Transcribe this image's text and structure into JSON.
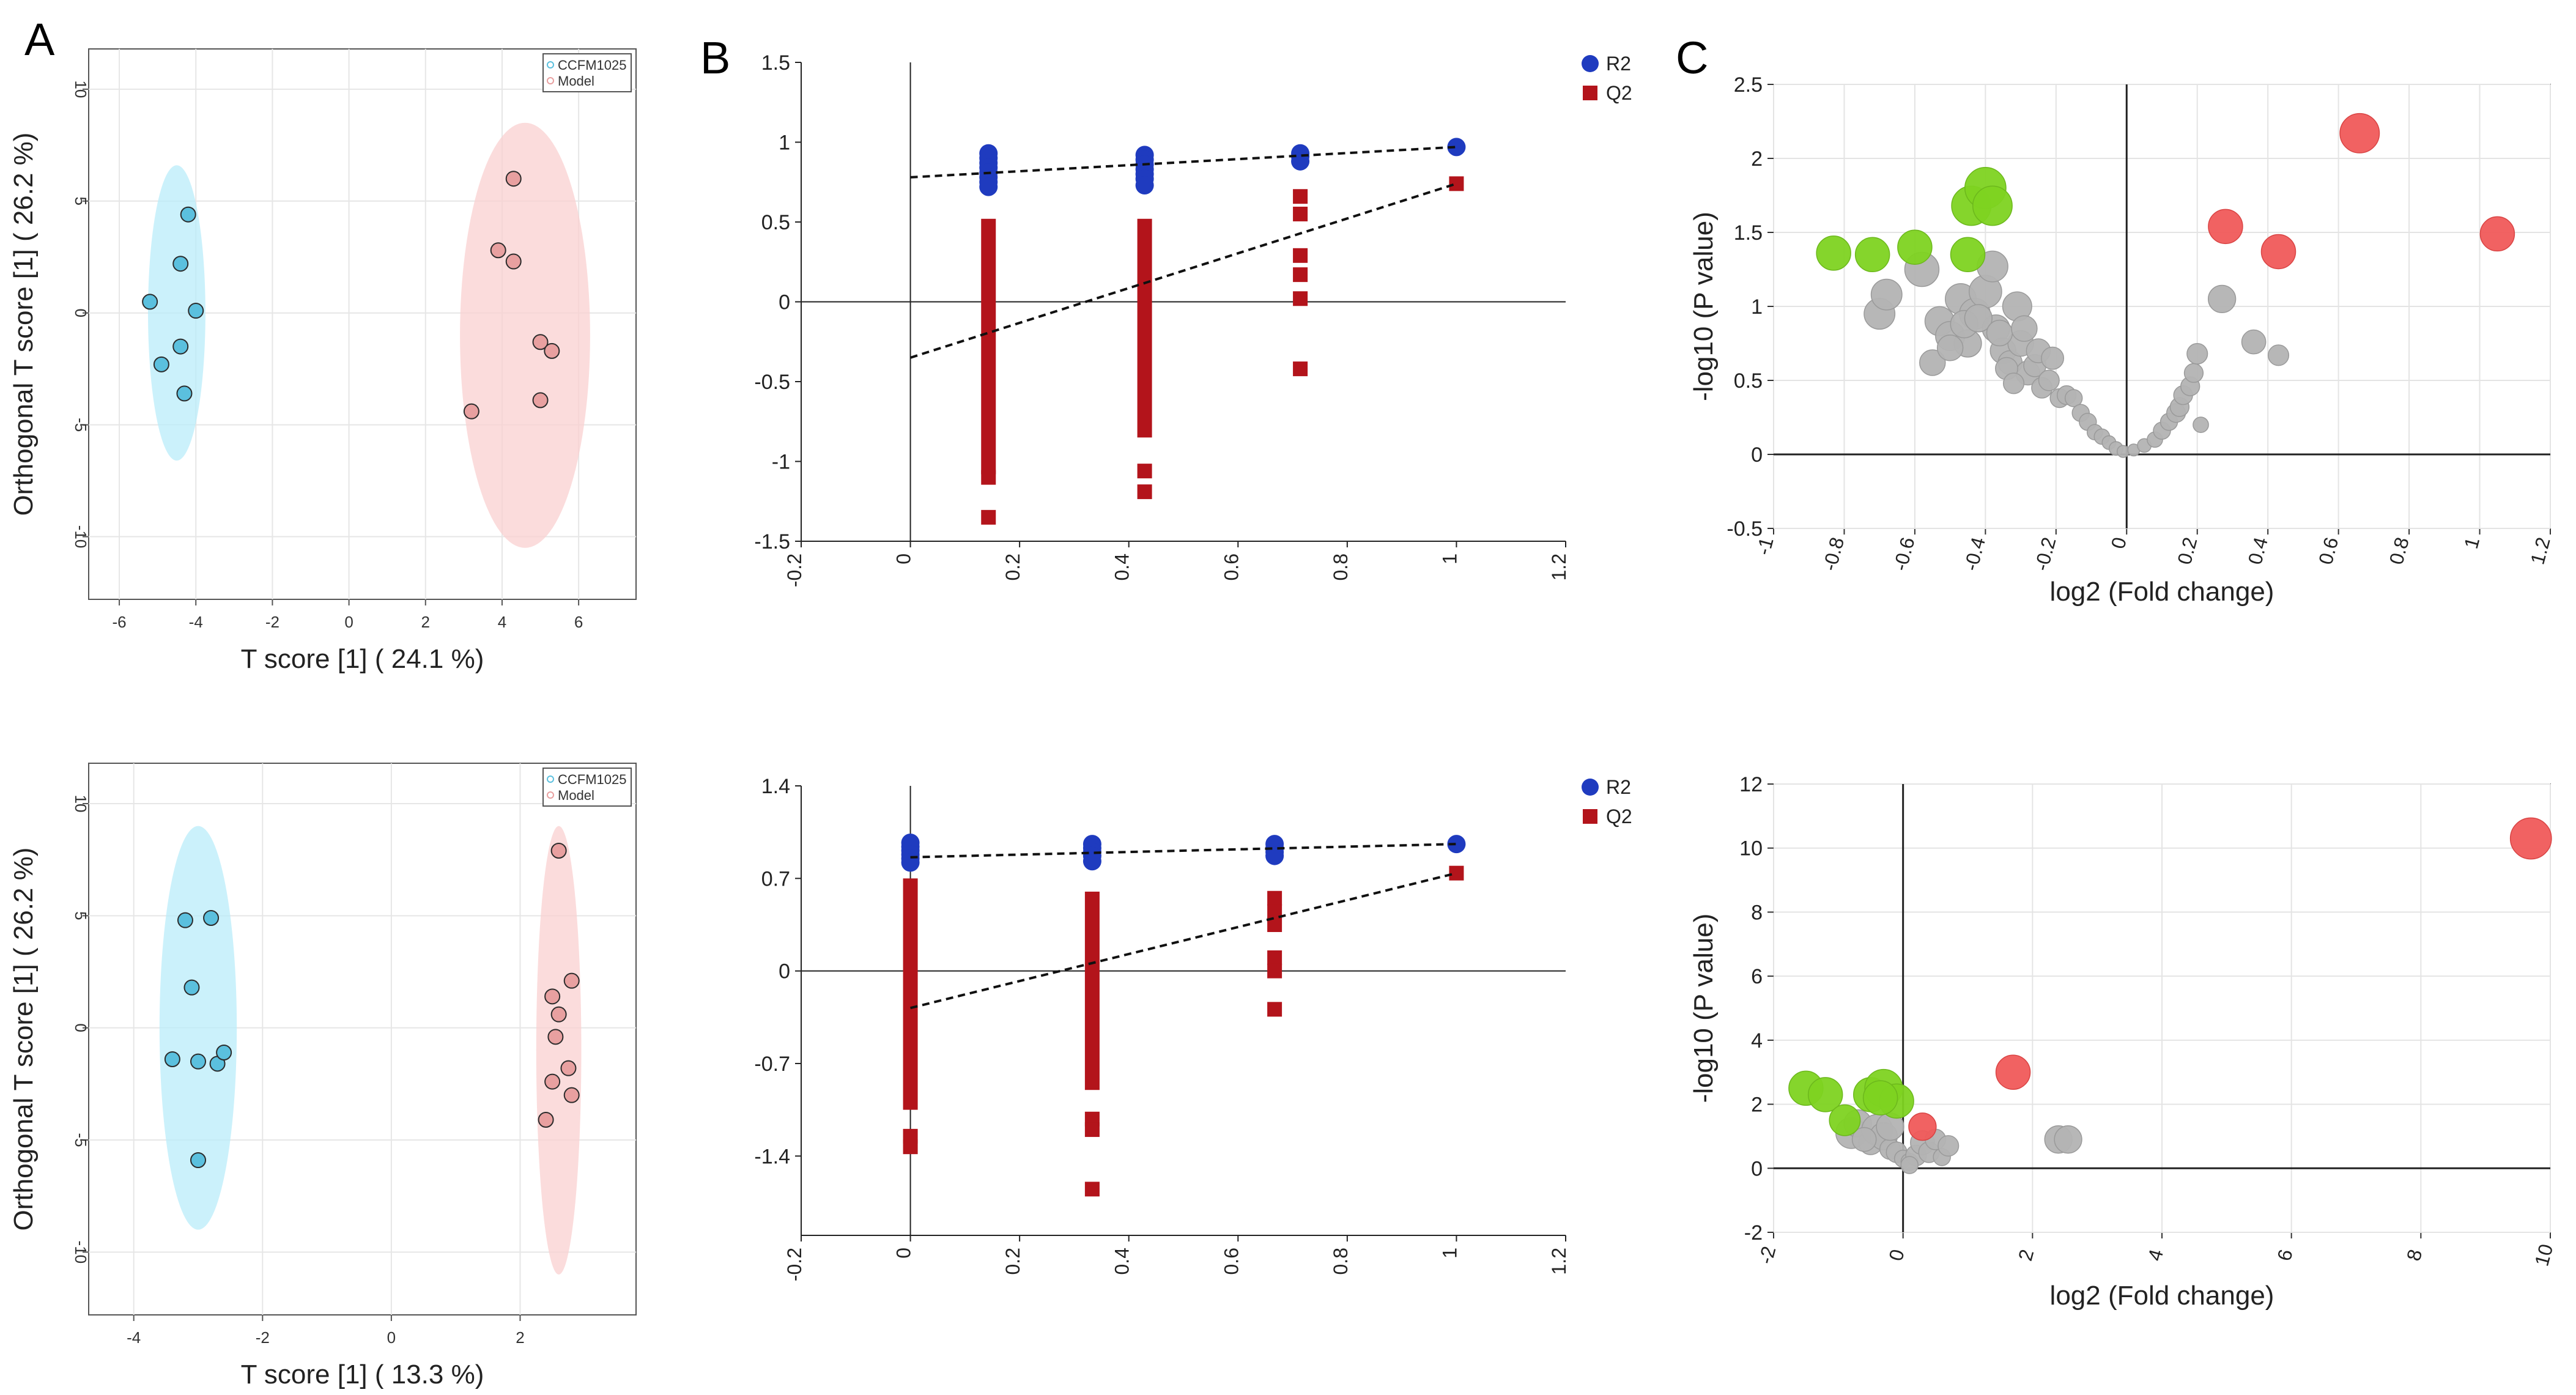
{
  "panel_labels": [
    "A",
    "B",
    "C"
  ],
  "chart_data": [
    {
      "id": "A1",
      "type": "scatter",
      "xlabel": "T score [1] ( 24.1 %)",
      "ylabel": "Orthogonal T score [1] ( 26.2 %)",
      "xlim": [
        -6.8,
        7.5
      ],
      "ylim": [
        -12.8,
        11.8
      ],
      "xticks": [
        -6,
        -4,
        -2,
        0,
        2,
        4,
        6
      ],
      "yticks": [
        -10,
        -5,
        0,
        5,
        10
      ],
      "grid": true,
      "legend": "top-right",
      "legend_entries": [
        "CCFM1025",
        "Model"
      ],
      "series": [
        {
          "name": "CCFM1025",
          "color": "#5bc0de",
          "ellipse": {
            "cx": -4.5,
            "cy": 0.0,
            "rx": 0.75,
            "ry": 6.6,
            "color": "#b9ecfa"
          },
          "x": [
            -5.2,
            -4.2,
            -4.4,
            -4.0,
            -4.4,
            -4.3,
            -4.9
          ],
          "y": [
            0.5,
            4.4,
            2.2,
            0.1,
            -1.5,
            -3.6,
            -2.3
          ]
        },
        {
          "name": "Model",
          "color": "#e8a0a0",
          "ellipse": {
            "cx": 4.6,
            "cy": -1.0,
            "rx": 1.7,
            "ry": 9.5,
            "color": "#f9d0d0"
          },
          "x": [
            4.3,
            3.9,
            4.3,
            5.0,
            5.3,
            3.2,
            5.0
          ],
          "y": [
            6.0,
            2.8,
            2.3,
            -1.3,
            -1.7,
            -4.4,
            -3.9
          ]
        }
      ]
    },
    {
      "id": "B1",
      "type": "scatter",
      "xlim": [
        -0.2,
        1.2
      ],
      "ylim": [
        -1.5,
        1.5
      ],
      "xticks": [
        -0.2,
        0,
        0.2,
        0.4,
        0.6,
        0.8,
        1,
        1.2
      ],
      "yticks": [
        -1.5,
        -1,
        -0.5,
        0,
        0.5,
        1,
        1.5
      ],
      "legend": "top-right",
      "series": [
        {
          "name": "R2",
          "color": "#1f3bbf",
          "marker": "circle",
          "x": [
            0.143,
            0.143,
            0.143,
            0.143,
            0.143,
            0.143,
            0.143,
            0.143,
            0.429,
            0.429,
            0.429,
            0.429,
            0.429,
            0.429,
            0.429,
            0.714,
            0.714,
            0.714,
            1
          ],
          "y": [
            0.93,
            0.9,
            0.87,
            0.84,
            0.81,
            0.78,
            0.75,
            0.72,
            0.92,
            0.89,
            0.86,
            0.83,
            0.8,
            0.77,
            0.73,
            0.93,
            0.91,
            0.88,
            0.97
          ]
        },
        {
          "name": "Q2",
          "color": "#b3141b",
          "marker": "square",
          "bands": [
            [
              0.143,
              -1.08,
              0.52
            ],
            [
              0.429,
              -0.85,
              0.52
            ]
          ],
          "x": [
            0.143,
            0.143,
            0.429,
            0.429,
            0.714,
            0.714,
            0.714,
            0.714,
            0.714,
            0.714,
            1
          ],
          "y": [
            -1.35,
            -1.1,
            -1.06,
            -1.19,
            0.66,
            0.55,
            0.29,
            0.17,
            0.02,
            -0.42,
            0.74
          ]
        }
      ],
      "regression": [
        {
          "x": [
            0,
            1
          ],
          "y": [
            0.78,
            0.97
          ]
        },
        {
          "x": [
            0,
            1
          ],
          "y": [
            -0.35,
            0.74
          ]
        }
      ]
    },
    {
      "id": "C1",
      "type": "scatter",
      "xlabel": "log2 (Fold change)",
      "ylabel": "-log10 (P value)",
      "xlim": [
        -1,
        1.2
      ],
      "ylim": [
        -0.5,
        2.5
      ],
      "xticks": [
        -1,
        -0.8,
        -0.6,
        -0.4,
        -0.2,
        0,
        0.2,
        0.4,
        0.6,
        0.8,
        1,
        1.2
      ],
      "yticks": [
        -0.5,
        0,
        0.5,
        1,
        1.5,
        2,
        2.5
      ],
      "grid": true,
      "series": [
        {
          "name": "",
          "color": "#7ed321",
          "x": [
            -0.83,
            -0.72,
            -0.6,
            -0.44,
            -0.4,
            -0.38,
            -0.45
          ],
          "y": [
            1.36,
            1.35,
            1.4,
            1.68,
            1.8,
            1.68,
            1.35
          ],
          "size": [
            1,
            1,
            1,
            1.15,
            1.2,
            1.15,
            1
          ]
        },
        {
          "name": "",
          "color": "#f05a5a",
          "x": [
            0.66,
            0.28,
            0.43,
            1.05
          ],
          "y": [
            2.17,
            1.54,
            1.37,
            1.49
          ],
          "size": [
            1.15,
            1,
            1,
            1
          ]
        },
        {
          "name": "",
          "color": "#b3b3b3",
          "x": [
            -0.58,
            -0.53,
            -0.5,
            -0.47,
            -0.45,
            -0.43,
            -0.4,
            -0.38,
            -0.37,
            -0.35,
            -0.33,
            -0.31,
            -0.3,
            -0.28,
            -0.26,
            -0.25,
            -0.24,
            -0.22,
            -0.21,
            -0.19,
            -0.17,
            -0.15,
            -0.13,
            -0.11,
            -0.09,
            -0.07,
            -0.05,
            -0.03,
            -0.01,
            0.02,
            0.05,
            0.08,
            0.1,
            0.12,
            0.14,
            0.15,
            0.16,
            0.18,
            0.19,
            0.2,
            0.21,
            0.27,
            0.36,
            0.43,
            -0.7,
            -0.68,
            -0.55,
            -0.5,
            -0.46,
            -0.42,
            -0.36,
            -0.34,
            -0.32,
            -0.29
          ],
          "y": [
            1.25,
            0.9,
            0.8,
            1.05,
            0.75,
            0.95,
            1.1,
            1.27,
            0.85,
            0.7,
            0.62,
            1.0,
            0.75,
            0.55,
            0.6,
            0.7,
            0.45,
            0.5,
            0.65,
            0.38,
            0.4,
            0.38,
            0.28,
            0.22,
            0.15,
            0.12,
            0.08,
            0.04,
            0.02,
            0.03,
            0.06,
            0.1,
            0.16,
            0.22,
            0.28,
            0.32,
            0.4,
            0.46,
            0.55,
            0.68,
            0.2,
            1.05,
            0.76,
            0.67,
            0.95,
            1.08,
            0.62,
            0.72,
            0.88,
            0.92,
            0.82,
            0.58,
            0.48,
            0.85
          ],
          "size": [
            1,
            0.85,
            0.85,
            0.9,
            0.8,
            0.9,
            0.95,
            0.9,
            0.8,
            0.75,
            0.7,
            0.85,
            0.75,
            0.7,
            0.65,
            0.7,
            0.6,
            0.6,
            0.65,
            0.55,
            0.55,
            0.5,
            0.5,
            0.5,
            0.45,
            0.45,
            0.4,
            0.4,
            0.35,
            0.35,
            0.4,
            0.45,
            0.5,
            0.5,
            0.55,
            0.55,
            0.55,
            0.55,
            0.55,
            0.6,
            0.45,
            0.8,
            0.7,
            0.6,
            0.9,
            0.9,
            0.75,
            0.75,
            0.8,
            0.8,
            0.75,
            0.65,
            0.6,
            0.75
          ]
        }
      ]
    },
    {
      "id": "A2",
      "type": "scatter",
      "xlabel": "T score [1] ( 13.3 %)",
      "ylabel": "Orthogonal T score [1] ( 26.2 %)",
      "xlim": [
        -4.7,
        3.8
      ],
      "ylim": [
        -12.8,
        11.8
      ],
      "xticks": [
        -4,
        -2,
        0,
        2
      ],
      "yticks": [
        -10,
        -5,
        0,
        5,
        10
      ],
      "grid": true,
      "legend": "top-right",
      "legend_entries": [
        "CCFM1025",
        "Model"
      ],
      "series": [
        {
          "name": "CCFM1025",
          "color": "#5bc0de",
          "ellipse": {
            "cx": -3.0,
            "cy": 0.0,
            "rx": 0.6,
            "ry": 9.0,
            "color": "#b9ecfa"
          },
          "x": [
            -3.2,
            -2.8,
            -3.1,
            -3.4,
            -3.0,
            -2.7,
            -2.6,
            -3.0
          ],
          "y": [
            4.8,
            4.9,
            1.8,
            -1.4,
            -1.5,
            -1.6,
            -1.1,
            -5.9
          ]
        },
        {
          "name": "Model",
          "color": "#e8a0a0",
          "ellipse": {
            "cx": 2.6,
            "cy": -1.0,
            "rx": 0.35,
            "ry": 10.0,
            "color": "#f9d0d0"
          },
          "x": [
            2.6,
            2.8,
            2.5,
            2.6,
            2.55,
            2.5,
            2.75,
            2.8,
            2.4
          ],
          "y": [
            7.9,
            2.1,
            1.4,
            0.6,
            -0.4,
            -2.4,
            -1.8,
            -3.0,
            -4.1
          ]
        }
      ]
    },
    {
      "id": "B2",
      "type": "scatter",
      "xlim": [
        -0.2,
        1.2
      ],
      "ylim": [
        -2.0,
        1.4
      ],
      "xticks": [
        -0.2,
        0,
        0.2,
        0.4,
        0.6,
        0.8,
        1,
        1.2
      ],
      "yticks": [
        -1.4,
        -0.7,
        0,
        0.7,
        1.4
      ],
      "legend": "top-right",
      "series": [
        {
          "name": "R2",
          "color": "#1f3bbf",
          "marker": "circle",
          "x": [
            0,
            0,
            0,
            0,
            0,
            0,
            0.333,
            0.333,
            0.333,
            0.333,
            0.333,
            0.667,
            0.667,
            0.667,
            0.667,
            1
          ],
          "y": [
            0.97,
            0.94,
            0.91,
            0.88,
            0.85,
            0.82,
            0.96,
            0.93,
            0.9,
            0.87,
            0.83,
            0.96,
            0.93,
            0.9,
            0.87,
            0.96
          ]
        },
        {
          "name": "Q2",
          "color": "#b3141b",
          "marker": "square",
          "bands": [
            [
              0,
              -1.05,
              0.7
            ],
            [
              0.333,
              -0.9,
              0.6
            ]
          ],
          "x": [
            0,
            0,
            0.333,
            0.333,
            0.333,
            0.667,
            0.667,
            0.667,
            0.667,
            0.667,
            0.667,
            1
          ],
          "y": [
            -1.25,
            -1.33,
            -1.12,
            -1.2,
            -1.65,
            0.55,
            0.45,
            0.35,
            0.1,
            0.0,
            -0.29,
            0.74
          ]
        }
      ],
      "regression": [
        {
          "x": [
            0,
            1
          ],
          "y": [
            0.86,
            0.96
          ]
        },
        {
          "x": [
            0,
            1
          ],
          "y": [
            -0.28,
            0.74
          ]
        }
      ]
    },
    {
      "id": "C2",
      "type": "scatter",
      "xlabel": "log2 (Fold change)",
      "ylabel": "-log10 (P value)",
      "xlim": [
        -2,
        10
      ],
      "ylim": [
        -2,
        12
      ],
      "xticks": [
        -2,
        0,
        2,
        4,
        6,
        8,
        10
      ],
      "yticks": [
        -2,
        0,
        2,
        4,
        6,
        8,
        10,
        12
      ],
      "grid": true,
      "series": [
        {
          "name": "",
          "color": "#7ed321",
          "x": [
            -1.5,
            -1.2,
            -0.5,
            -0.3,
            -0.1,
            -0.35,
            -0.9
          ],
          "y": [
            2.5,
            2.3,
            2.3,
            2.5,
            2.1,
            2.2,
            1.5
          ],
          "size": [
            1,
            1,
            1,
            1.1,
            1,
            1,
            0.9
          ]
        },
        {
          "name": "",
          "color": "#f05a5a",
          "x": [
            9.7,
            1.7,
            0.3
          ],
          "y": [
            10.3,
            3.0,
            1.3
          ],
          "size": [
            1.2,
            1,
            0.8
          ]
        },
        {
          "name": "",
          "color": "#b3b3b3",
          "x": [
            -0.8,
            -0.7,
            -0.5,
            -0.4,
            -0.3,
            -0.2,
            -0.1,
            0.0,
            0.1,
            0.2,
            0.3,
            0.4,
            0.5,
            0.6,
            0.7,
            -0.6,
            -0.2,
            0.1,
            2.4,
            2.55
          ],
          "y": [
            1.1,
            1.4,
            0.8,
            1.2,
            1.0,
            0.6,
            0.5,
            0.3,
            0.2,
            0.4,
            0.8,
            0.5,
            0.9,
            0.35,
            0.7,
            0.9,
            1.3,
            0.1,
            0.9,
            0.9
          ],
          "size": [
            0.9,
            0.8,
            0.7,
            0.9,
            0.8,
            0.6,
            0.6,
            0.5,
            0.5,
            0.6,
            0.7,
            0.6,
            0.6,
            0.5,
            0.6,
            0.7,
            0.8,
            0.5,
            0.8,
            0.8
          ]
        }
      ]
    }
  ]
}
